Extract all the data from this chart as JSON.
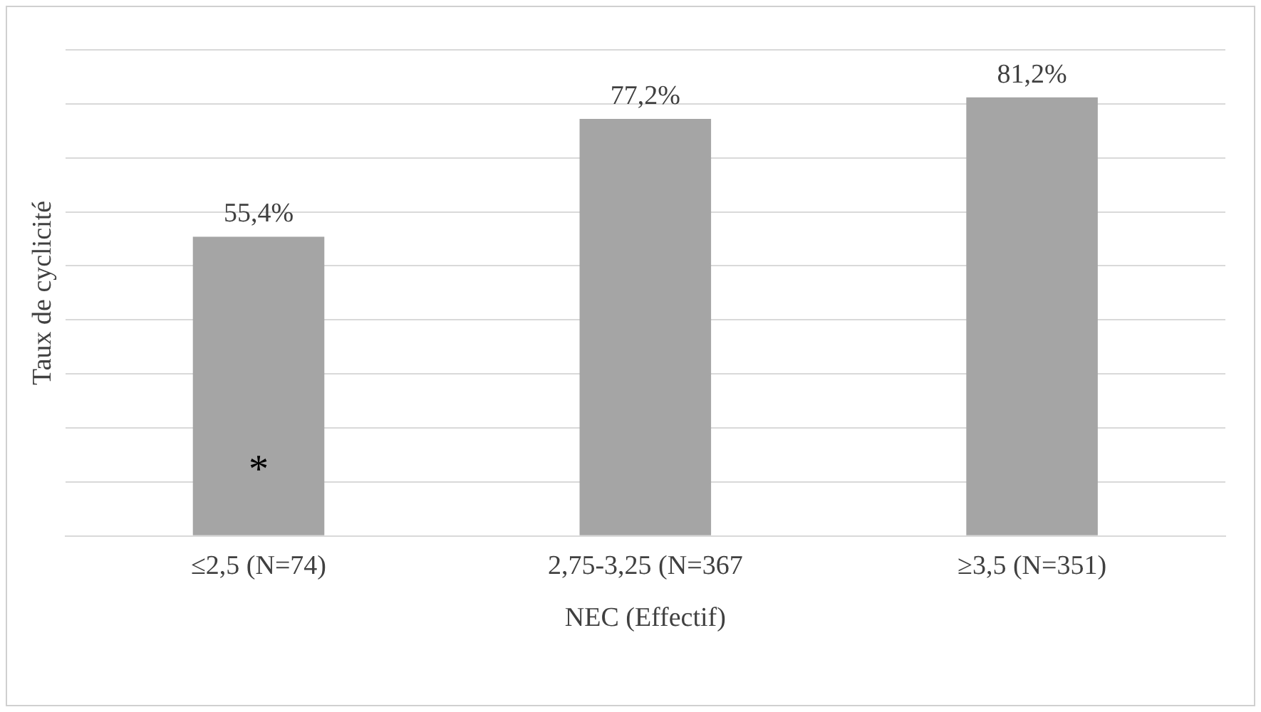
{
  "chart_data": {
    "type": "bar",
    "xlabel": "NEC (Effectif)",
    "ylabel": "Taux de cyclicité",
    "categories": [
      "≤2,5 (N=74)",
      "2,75-3,25 (N=367",
      "≥3,5 (N=351)"
    ],
    "values": [
      55.4,
      77.2,
      81.2
    ],
    "value_labels": [
      "55,4%",
      "77,2%",
      "81,2%"
    ],
    "color": "#a5a5a5",
    "ylim": [
      0,
      90
    ],
    "yticks": [
      {
        "value": 0,
        "label": null
      },
      {
        "value": 10,
        "label": null
      },
      {
        "value": 20,
        "label": null
      },
      {
        "value": 30,
        "label": null
      },
      {
        "value": 40,
        "label": null
      },
      {
        "value": 50,
        "label": null
      },
      {
        "value": 60,
        "label": null
      },
      {
        "value": 70,
        "label": null
      },
      {
        "value": 80,
        "label": null
      },
      {
        "value": 90,
        "label": null
      }
    ],
    "grid": "y",
    "tick_labels": "x",
    "annotations": [
      "*"
    ]
  }
}
